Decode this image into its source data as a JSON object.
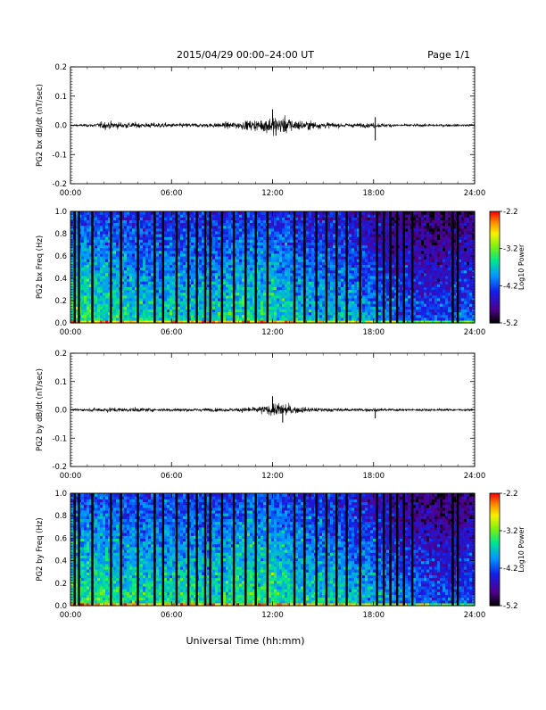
{
  "header": {
    "title": "2015/04/29  00:00–24:00 UT",
    "page": "Page 1/1"
  },
  "footer": {
    "xlabel": "Universal Time (hh:mm)"
  },
  "chart_data": [
    {
      "type": "line",
      "ylabel": "PG2 bx dB/dt (nT/sec)",
      "ylim": [
        -0.2,
        0.2
      ],
      "yticks": [
        -0.2,
        -0.1,
        0.0,
        0.1,
        0.2
      ],
      "ytick_labels": [
        "-0.2",
        "-0.1",
        "0.0",
        "0.1",
        "0.2"
      ],
      "xlim": [
        0,
        24
      ],
      "xticks": [
        0,
        6,
        12,
        18,
        24
      ],
      "xtick_labels": [
        "00:00",
        "06:00",
        "12:00",
        "18:00",
        "24:00"
      ],
      "envelope_hours": [
        0,
        1,
        1.5,
        2,
        3,
        4,
        5,
        6,
        7,
        8,
        9,
        10,
        10.5,
        11,
        11.5,
        12,
        12.5,
        13,
        13.5,
        14,
        14.5,
        15,
        16,
        17,
        17.5,
        18,
        18.2,
        19,
        20,
        21,
        22,
        23,
        24
      ],
      "envelope_amp": [
        0.004,
        0.006,
        0.01,
        0.018,
        0.015,
        0.012,
        0.012,
        0.01,
        0.01,
        0.01,
        0.012,
        0.018,
        0.022,
        0.025,
        0.032,
        0.045,
        0.04,
        0.035,
        0.025,
        0.02,
        0.02,
        0.015,
        0.01,
        0.01,
        0.01,
        0.012,
        0.01,
        0.008,
        0.006,
        0.006,
        0.006,
        0.006,
        0.006
      ],
      "spikes": [
        {
          "hour": 12.0,
          "value": 0.055
        },
        {
          "hour": 12.2,
          "value": -0.035
        },
        {
          "hour": 18.1,
          "value": -0.052
        },
        {
          "hour": 18.1,
          "value": 0.028
        }
      ]
    },
    {
      "type": "heatmap",
      "ylabel": "PG2 bx Freq (Hz)",
      "ylim": [
        0.0,
        1.0
      ],
      "yticks": [
        0.0,
        0.2,
        0.4,
        0.6,
        0.8,
        1.0
      ],
      "ytick_labels": [
        "0.0",
        "0.2",
        "0.4",
        "0.6",
        "0.8",
        "1.0"
      ],
      "xlim": [
        0,
        24
      ],
      "xticks": [
        0,
        6,
        12,
        18,
        24
      ],
      "xtick_labels": [
        "00:00",
        "06:00",
        "12:00",
        "18:00",
        "24:00"
      ],
      "colorbar": {
        "label": "Log10 Power",
        "range": [
          -5.2,
          -2.2
        ],
        "ticks": [
          -2.2,
          -3.2,
          -4.2,
          -5.2
        ],
        "tick_labels": [
          "-2.2",
          "-3.2",
          "-4.2",
          "-5.2"
        ]
      },
      "gap_hours": [
        0.25,
        0.5,
        1.3,
        2.4,
        3.0,
        4.0,
        5.0,
        5.5,
        6.3,
        7.0,
        7.5,
        8.0,
        8.3,
        9.0,
        9.7,
        10.4,
        11.0,
        11.7,
        13.3,
        13.9,
        14.6,
        15.2,
        15.8,
        16.4,
        17.2,
        18.2,
        18.6,
        19.0,
        19.4,
        19.8,
        20.3,
        22.7,
        23.0
      ],
      "power_mean_by_hour": [
        -3.6,
        -3.6,
        -3.7,
        -3.7,
        -3.8,
        -3.8,
        -3.8,
        -3.8,
        -3.8,
        -3.8,
        -3.7,
        -3.7,
        -3.7,
        -3.8,
        -3.9,
        -3.9,
        -3.9,
        -4.0,
        -4.1,
        -4.2,
        -4.3,
        -4.4,
        -4.4,
        -4.3,
        -4.3
      ]
    },
    {
      "type": "line",
      "ylabel": "PG2 by dB/dt (nT/sec)",
      "ylim": [
        -0.2,
        0.2
      ],
      "yticks": [
        -0.2,
        -0.1,
        0.0,
        0.1,
        0.2
      ],
      "ytick_labels": [
        "-0.2",
        "-0.1",
        "0.0",
        "0.1",
        "0.2"
      ],
      "xlim": [
        0,
        24
      ],
      "xticks": [
        0,
        6,
        12,
        18,
        24
      ],
      "xtick_labels": [
        "00:00",
        "06:00",
        "12:00",
        "18:00",
        "24:00"
      ],
      "envelope_hours": [
        0,
        1,
        1.5,
        2,
        3,
        4,
        5,
        6,
        7,
        8,
        9,
        10,
        10.5,
        11,
        11.5,
        12,
        12.5,
        13,
        13.5,
        14,
        14.5,
        15,
        16,
        17,
        17.5,
        18,
        18.2,
        19,
        20,
        21,
        22,
        23,
        24
      ],
      "envelope_amp": [
        0.004,
        0.006,
        0.01,
        0.012,
        0.01,
        0.01,
        0.008,
        0.008,
        0.008,
        0.008,
        0.008,
        0.01,
        0.012,
        0.015,
        0.02,
        0.028,
        0.035,
        0.025,
        0.018,
        0.012,
        0.01,
        0.01,
        0.008,
        0.008,
        0.008,
        0.008,
        0.008,
        0.006,
        0.006,
        0.006,
        0.006,
        0.005,
        0.005
      ],
      "spikes": [
        {
          "hour": 12.0,
          "value": 0.048
        },
        {
          "hour": 12.6,
          "value": -0.045
        },
        {
          "hour": 18.1,
          "value": -0.03
        }
      ]
    },
    {
      "type": "heatmap",
      "ylabel": "PG2 by Freq (Hz)",
      "ylim": [
        0.0,
        1.0
      ],
      "yticks": [
        0.0,
        0.2,
        0.4,
        0.6,
        0.8,
        1.0
      ],
      "ytick_labels": [
        "0.0",
        "0.2",
        "0.4",
        "0.6",
        "0.8",
        "1.0"
      ],
      "xlim": [
        0,
        24
      ],
      "xticks": [
        0,
        6,
        12,
        18,
        24
      ],
      "xtick_labels": [
        "00:00",
        "06:00",
        "12:00",
        "18:00",
        "24:00"
      ],
      "colorbar": {
        "label": "Log10 Power",
        "range": [
          -5.2,
          -2.2
        ],
        "ticks": [
          -2.2,
          -3.2,
          -4.2,
          -5.2
        ],
        "tick_labels": [
          "-2.2",
          "-3.2",
          "-4.2",
          "-5.2"
        ]
      },
      "gap_hours": [
        0.25,
        0.5,
        1.3,
        2.4,
        3.0,
        4.0,
        5.0,
        5.5,
        6.3,
        7.0,
        7.5,
        8.0,
        8.3,
        9.0,
        9.7,
        10.4,
        11.0,
        11.7,
        13.3,
        13.9,
        14.6,
        15.2,
        15.8,
        16.4,
        17.2,
        18.2,
        18.6,
        19.0,
        19.4,
        19.8,
        20.3,
        22.7,
        23.0
      ],
      "power_mean_by_hour": [
        -3.6,
        -3.6,
        -3.6,
        -3.7,
        -3.7,
        -3.7,
        -3.7,
        -3.7,
        -3.7,
        -3.7,
        -3.6,
        -3.6,
        -3.6,
        -3.7,
        -3.8,
        -3.8,
        -3.8,
        -3.9,
        -4.0,
        -4.1,
        -4.2,
        -4.3,
        -4.4,
        -4.3,
        -4.3
      ]
    }
  ]
}
